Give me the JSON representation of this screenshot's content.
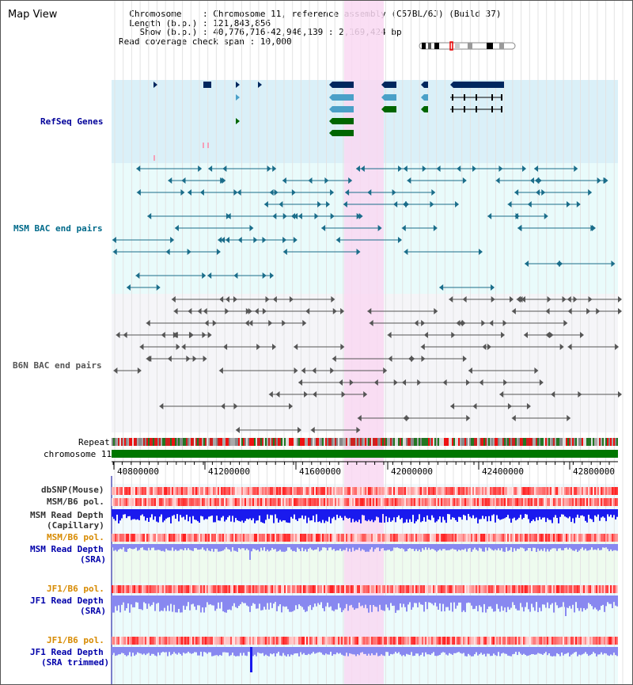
{
  "view_title": "Map View",
  "info": {
    "chromosome_label": "Chromosome",
    "chromosome_value": "Chromosome 11, reference assembly (C57BL/6J) (Build 37)",
    "length_label": "Length (b.p.)",
    "length_value": "121,843,856",
    "show_label": "Show (b.p.)",
    "show_value": "40,776,716-42,946,139 : 2,169,424 bp",
    "span_label": "Read coverage check span",
    "span_value": "10,000"
  },
  "tracks": {
    "refseq": "RefSeq Genes",
    "msm_bac": "MSM BAC end pairs",
    "b6n_bac": "B6N BAC end pairs",
    "repeat": "Repeat",
    "chromosome": "chromosome 11",
    "dbsnp": "dbSNP(Mouse)",
    "msm_b6_pol": "MSM/B6 pol.",
    "msm_depth_cap_1": "MSM Read Depth",
    "msm_depth_cap_2": "(Capillary)",
    "msm_b6_pol_sra": "MSM/B6 pol.",
    "msm_depth_sra_1": "MSM Read Depth",
    "msm_depth_sra_2": "(SRA)",
    "jf1_b6_pol_1": "JF1/B6 pol.",
    "jf1_depth_sra_1": "JF1 Read Depth",
    "jf1_depth_sra_2": "(SRA)",
    "jf1_b6_pol_2": "JF1/B6 pol.",
    "jf1_depth_trim_1": "JF1 Read Depth",
    "jf1_depth_trim_2": "(SRA trimmed)"
  },
  "axis_ticks": [
    "40800000",
    "41200000",
    "41600000",
    "42000000",
    "42400000",
    "42800000"
  ],
  "colors": {
    "refseq_bg": "#daf0f8",
    "msm_bg": "#e9fbfb",
    "b6n_bg": "#f5f5f8",
    "highlight": "#f9d8f2",
    "refseq_dark": "#00275e",
    "refseq_mid": "#4aa0c8",
    "refseq_green": "#006600",
    "msm_line": "#1a6d8a",
    "b6n_line": "#555555",
    "chrom_green": "#007700",
    "depth_blue": "#1a1aee",
    "depth_light": "#8888f0"
  }
}
